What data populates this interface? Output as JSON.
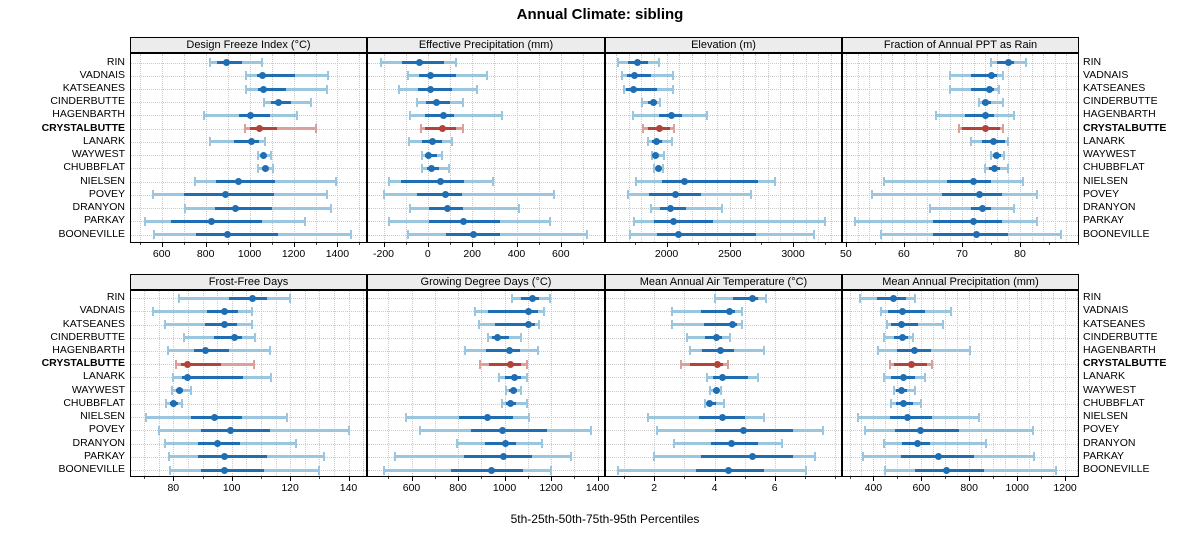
{
  "title": "Annual Climate: sibling",
  "caption": "5th-25th-50th-75th-95th Percentiles",
  "percentile_labels": [
    "5th",
    "25th",
    "50th",
    "75th",
    "95th"
  ],
  "sites": [
    "RIN",
    "VADNAIS",
    "KATSEANES",
    "CINDERBUTTE",
    "HAGENBARTH",
    "CRYSTALBUTTE",
    "LANARK",
    "WAYWEST",
    "CHUBBFLAT",
    "NIELSEN",
    "POVEY",
    "DRANYON",
    "PARKAY",
    "BOONEVILLE"
  ],
  "highlight_site": "CRYSTALBUTTE",
  "colors": {
    "normal_dark": "#1f6eb3",
    "normal_light": "#9ac6e0",
    "highlight_dark": "#b2423a",
    "highlight_light": "#dca09a",
    "grid": "#c9c9c9",
    "strip_bg": "#ececec",
    "border": "#000000"
  },
  "chart_data": [
    {
      "type": "interval",
      "title": "Design Freeze Index (°C)",
      "xlim": [
        460,
        1530
      ],
      "ticks": [
        600,
        800,
        1000,
        1200,
        1400
      ],
      "grid_step": 100,
      "minor_step": 100,
      "values": [
        [
          820,
          850,
          895,
          965,
          1055
        ],
        [
          985,
          1035,
          1060,
          1205,
          1355
        ],
        [
          985,
          1040,
          1065,
          1165,
          1350
        ],
        [
          1065,
          1095,
          1130,
          1190,
          1280
        ],
        [
          790,
          950,
          1005,
          1095,
          1215
        ],
        [
          980,
          1000,
          1045,
          1125,
          1300
        ],
        [
          820,
          930,
          1010,
          1045,
          1070
        ],
        [
          1040,
          1050,
          1065,
          1075,
          1095
        ],
        [
          1040,
          1055,
          1070,
          1085,
          1105
        ],
        [
          750,
          845,
          950,
          1115,
          1395
        ],
        [
          560,
          700,
          890,
          1110,
          1350
        ],
        [
          705,
          840,
          935,
          1100,
          1370
        ],
        [
          525,
          640,
          825,
          1055,
          1250
        ],
        [
          565,
          755,
          900,
          1130,
          1460
        ]
      ]
    },
    {
      "type": "interval",
      "title": "Effective Precipitation (mm)",
      "xlim": [
        -270,
        795
      ],
      "ticks": [
        -200,
        0,
        200,
        400,
        600
      ],
      "grid_step": 100,
      "minor_step": 100,
      "values": [
        [
          -210,
          -115,
          -40,
          75,
          125
        ],
        [
          -90,
          -40,
          10,
          125,
          265
        ],
        [
          -130,
          -45,
          10,
          110,
          220
        ],
        [
          -50,
          -10,
          40,
          100,
          160
        ],
        [
          -80,
          -15,
          70,
          120,
          335
        ],
        [
          -30,
          -15,
          65,
          125,
          160
        ],
        [
          -85,
          -25,
          20,
          65,
          110
        ],
        [
          -28,
          -13,
          5,
          40,
          65
        ],
        [
          -25,
          -5,
          18,
          50,
          95
        ],
        [
          -175,
          -120,
          55,
          165,
          295
        ],
        [
          -200,
          -50,
          80,
          155,
          570
        ],
        [
          -80,
          5,
          90,
          160,
          410
        ],
        [
          -175,
          5,
          160,
          325,
          550
        ],
        [
          -90,
          80,
          205,
          325,
          720
        ]
      ]
    },
    {
      "type": "interval",
      "title": "Elevation (m)",
      "xlim": [
        1520,
        3380
      ],
      "ticks": [
        2000,
        2500,
        3000
      ],
      "grid_step": 100,
      "minor_step": 250,
      "values": [
        [
          1615,
          1690,
          1765,
          1850,
          1940
        ],
        [
          1645,
          1685,
          1745,
          1875,
          2050
        ],
        [
          1665,
          1680,
          1735,
          1925,
          2050
        ],
        [
          1805,
          1850,
          1895,
          1925,
          1950
        ],
        [
          1730,
          1940,
          2035,
          2125,
          2320
        ],
        [
          1815,
          1850,
          1940,
          2030,
          2060
        ],
        [
          1850,
          1885,
          1920,
          1960,
          2045
        ],
        [
          1880,
          1900,
          1915,
          1935,
          1980
        ],
        [
          1900,
          1915,
          1935,
          1950,
          1970
        ],
        [
          1760,
          1965,
          2140,
          2725,
          2855
        ],
        [
          1690,
          1860,
          2070,
          2270,
          2665
        ],
        [
          1875,
          1945,
          2030,
          2150,
          2440
        ],
        [
          1745,
          1900,
          2050,
          2365,
          3250
        ],
        [
          1710,
          1925,
          2090,
          2710,
          3165
        ]
      ]
    },
    {
      "type": "interval",
      "title": "Fraction of Annual PPT as Rain",
      "xlim": [
        49.5,
        90
      ],
      "ticks": [
        50,
        60,
        70,
        80
      ],
      "grid_step": 2,
      "minor_step": 5,
      "values": [
        [
          75,
          76,
          78,
          79,
          81
        ],
        [
          68,
          71.5,
          75,
          76,
          77
        ],
        [
          68,
          71.5,
          74.8,
          75.5,
          76.3
        ],
        [
          73,
          73.5,
          74,
          75,
          77
        ],
        [
          65.5,
          70.5,
          74,
          75.5,
          79
        ],
        [
          69.5,
          70,
          74,
          76.5,
          77
        ],
        [
          71.5,
          73.5,
          75.5,
          77.5,
          78
        ],
        [
          75,
          75.3,
          76,
          76.7,
          77.2
        ],
        [
          74,
          74.7,
          75.6,
          76.5,
          78
        ],
        [
          56.5,
          67.5,
          72,
          75,
          80.5
        ],
        [
          54.5,
          66.5,
          73,
          77,
          83
        ],
        [
          64.5,
          71.5,
          73.5,
          75,
          79
        ],
        [
          51.5,
          65,
          72,
          77,
          83
        ],
        [
          56,
          65,
          72.5,
          78,
          87
        ]
      ]
    },
    {
      "type": "interval",
      "title": "Frost-Free Days",
      "xlim": [
        65.5,
        146
      ],
      "ticks": [
        80,
        100,
        120,
        140
      ],
      "grid_step": 5,
      "minor_step": 10,
      "values": [
        [
          82,
          99,
          107,
          112,
          120
        ],
        [
          73,
          91.5,
          97.5,
          102,
          107
        ],
        [
          77,
          91,
          97.5,
          102,
          107
        ],
        [
          83.5,
          94,
          101,
          103.5,
          108
        ],
        [
          78,
          87,
          91,
          99,
          113
        ],
        [
          81,
          82.5,
          85,
          96.5,
          107.5
        ],
        [
          80,
          83,
          85,
          104,
          113.5
        ],
        [
          79.5,
          81,
          82,
          83.5,
          86
        ],
        [
          77.5,
          79,
          80,
          81.5,
          83
        ],
        [
          70.5,
          86,
          94,
          103.5,
          119
        ],
        [
          75,
          89.5,
          99.5,
          113,
          140
        ],
        [
          77,
          88.5,
          95,
          103,
          122
        ],
        [
          78.5,
          88.5,
          97.5,
          112,
          131.5
        ],
        [
          79,
          89.5,
          97.5,
          111,
          130
        ]
      ]
    },
    {
      "type": "interval",
      "title": "Growing Degree Days (°C)",
      "xlim": [
        413,
        1428
      ],
      "ticks": [
        600,
        800,
        1000,
        1200,
        1400
      ],
      "grid_step": 100,
      "minor_step": 100,
      "values": [
        [
          1030,
          1070,
          1120,
          1150,
          1195
        ],
        [
          875,
          930,
          1105,
          1145,
          1170
        ],
        [
          890,
          960,
          1105,
          1130,
          1150
        ],
        [
          930,
          945,
          970,
          1020,
          1070
        ],
        [
          830,
          920,
          1020,
          1065,
          1145
        ],
        [
          895,
          935,
          1025,
          1070,
          1095
        ],
        [
          975,
          1000,
          1045,
          1070,
          1095
        ],
        [
          1005,
          1020,
          1040,
          1055,
          1070
        ],
        [
          990,
          1005,
          1025,
          1050,
          1095
        ],
        [
          575,
          805,
          925,
          1035,
          1105
        ],
        [
          635,
          855,
          990,
          1185,
          1370
        ],
        [
          795,
          915,
          1005,
          1050,
          1160
        ],
        [
          530,
          825,
          995,
          1120,
          1285
        ],
        [
          480,
          770,
          945,
          1080,
          1200
        ]
      ]
    },
    {
      "type": "interval",
      "title": "Mean Annual Air Temperature (°C)",
      "xlim": [
        0.4,
        8.2
      ],
      "ticks": [
        2,
        4,
        6
      ],
      "grid_step": 1,
      "minor_step": 1,
      "values": [
        [
          4.0,
          4.6,
          5.25,
          5.45,
          5.7
        ],
        [
          2.6,
          3.55,
          4.5,
          4.7,
          4.9
        ],
        [
          2.6,
          3.65,
          4.6,
          4.75,
          4.9
        ],
        [
          3.1,
          3.7,
          4.05,
          4.25,
          4.5
        ],
        [
          3.2,
          3.6,
          4.2,
          4.65,
          5.65
        ],
        [
          2.9,
          3.2,
          4.1,
          4.3,
          4.45
        ],
        [
          3.75,
          3.95,
          4.25,
          5.1,
          5.45
        ],
        [
          3.85,
          3.95,
          4.05,
          4.15,
          4.2
        ],
        [
          3.7,
          3.75,
          3.85,
          4.05,
          4.3
        ],
        [
          1.8,
          3.5,
          4.25,
          5.0,
          5.65
        ],
        [
          2.1,
          4.0,
          4.95,
          6.6,
          7.6
        ],
        [
          2.65,
          3.9,
          4.55,
          5.45,
          6.25
        ],
        [
          2.0,
          3.55,
          5.25,
          6.6,
          7.35
        ],
        [
          0.8,
          3.4,
          4.45,
          5.65,
          7.05
        ]
      ]
    },
    {
      "type": "interval",
      "title": "Mean Annual Precipitation (mm)",
      "xlim": [
        273,
        1254
      ],
      "ticks": [
        400,
        600,
        800,
        1000,
        1200
      ],
      "grid_step": 50,
      "minor_step": 100,
      "values": [
        [
          345,
          415,
          485,
          535,
          575
        ],
        [
          430,
          460,
          520,
          615,
          725
        ],
        [
          455,
          475,
          515,
          585,
          690
        ],
        [
          445,
          485,
          520,
          545,
          565
        ],
        [
          420,
          500,
          570,
          640,
          805
        ],
        [
          470,
          485,
          560,
          625,
          645
        ],
        [
          445,
          475,
          525,
          575,
          615
        ],
        [
          485,
          495,
          515,
          540,
          575
        ],
        [
          475,
          495,
          525,
          565,
          600
        ],
        [
          335,
          470,
          540,
          645,
          840
        ],
        [
          365,
          490,
          595,
          755,
          1065
        ],
        [
          445,
          520,
          585,
          635,
          870
        ],
        [
          355,
          515,
          670,
          820,
          1070
        ],
        [
          450,
          575,
          705,
          860,
          1160
        ]
      ]
    }
  ]
}
